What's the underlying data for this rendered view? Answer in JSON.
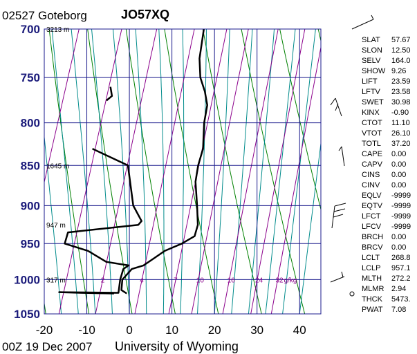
{
  "header": {
    "station": "02527  Goteborg",
    "id": "JO57XQ",
    "time": "00Z 19 Dec 2007",
    "source": "University of Wyoming"
  },
  "chart_data": {
    "type": "skew-t",
    "y_axis": {
      "scale": "log-pressure",
      "range": [
        1050,
        700
      ],
      "tick_labels": [
        "700",
        "750",
        "800",
        "850",
        "900",
        "950",
        "1000",
        "1050"
      ]
    },
    "x_axis": {
      "range": [
        -20,
        45
      ],
      "tick_labels": [
        "-20",
        "-10",
        "0",
        "10",
        "20",
        "30",
        "40"
      ]
    },
    "height_labels": [
      {
        "p": 700,
        "text": "3213 m"
      },
      {
        "p": 850,
        "text": "1645 m"
      },
      {
        "p": 925,
        "text": "947 m"
      },
      {
        "p": 1000,
        "text": "317 m"
      }
    ],
    "mixing_ratio_labels": [
      {
        "value": 2,
        "text": "2"
      },
      {
        "value": 4,
        "text": "4"
      },
      {
        "value": 7,
        "text": "7"
      },
      {
        "value": 10,
        "text": "10"
      },
      {
        "value": 16,
        "text": "16"
      },
      {
        "value": 24,
        "text": "24"
      },
      {
        "value": 32,
        "text": "32"
      }
    ],
    "mixing_ratio_unit": "g/kg",
    "temperature": [
      {
        "p": 1020,
        "t": -2.0
      },
      {
        "p": 1015,
        "t": -3.5
      },
      {
        "p": 1000,
        "t": -4.0
      },
      {
        "p": 985,
        "t": -2.5
      },
      {
        "p": 980,
        "t": 0.0
      },
      {
        "p": 970,
        "t": 2.0
      },
      {
        "p": 960,
        "t": 4.0
      },
      {
        "p": 950,
        "t": 7.5
      },
      {
        "p": 940,
        "t": 10.0
      },
      {
        "p": 925,
        "t": 10.0
      },
      {
        "p": 900,
        "t": 8.5
      },
      {
        "p": 870,
        "t": 6.5
      },
      {
        "p": 850,
        "t": 6.0
      },
      {
        "p": 830,
        "t": 6.0
      },
      {
        "p": 800,
        "t": 4.5
      },
      {
        "p": 780,
        "t": 4.0
      },
      {
        "p": 765,
        "t": 2.5
      },
      {
        "p": 750,
        "t": 0.5
      },
      {
        "p": 730,
        "t": -1.0
      },
      {
        "p": 700,
        "t": -2.0
      }
    ],
    "dewpoint": [
      {
        "p": 1020,
        "t": -5.0
      },
      {
        "p": 1019,
        "t": -13.0
      },
      {
        "p": 1018,
        "t": -18.0
      },
      {
        "p": 1019,
        "t": -4.0
      },
      {
        "p": 1000,
        "t": -4.5
      },
      {
        "p": 985,
        "t": -4.5
      },
      {
        "p": 980,
        "t": -3.5
      },
      {
        "p": 975,
        "t": -9.0
      },
      {
        "p": 960,
        "t": -14.0
      },
      {
        "p": 950,
        "t": -20.0
      },
      {
        "p": 935,
        "t": -20.0
      },
      {
        "p": 925,
        "t": -4.0
      },
      {
        "p": 920,
        "t": -3.5
      },
      {
        "p": 900,
        "t": -6.5
      },
      {
        "p": 850,
        "t": -10.5
      },
      {
        "p": 830,
        "t": -20.0
      }
    ],
    "dewpoint_top": [
      {
        "p": 775,
        "t": -20.0
      },
      {
        "p": 770,
        "t": -19.0
      },
      {
        "p": 760,
        "t": -20.0
      }
    ]
  },
  "indices": [
    {
      "name": "SLAT",
      "value": "57.67"
    },
    {
      "name": "SLON",
      "value": "12.50"
    },
    {
      "name": "SELV",
      "value": "164.0"
    },
    {
      "name": "SHOW",
      "value": "9.26"
    },
    {
      "name": "LIFT",
      "value": "23.59"
    },
    {
      "name": "LFTV",
      "value": "23.58"
    },
    {
      "name": "SWET",
      "value": "30.98"
    },
    {
      "name": "KINX",
      "value": "-0.90"
    },
    {
      "name": "CTOT",
      "value": "11.10"
    },
    {
      "name": "VTOT",
      "value": "26.10"
    },
    {
      "name": "TOTL",
      "value": "37.20"
    },
    {
      "name": "CAPE",
      "value": "0.00"
    },
    {
      "name": "CAPV",
      "value": "0.00"
    },
    {
      "name": "CINS",
      "value": "0.00"
    },
    {
      "name": "CINV",
      "value": "0.00"
    },
    {
      "name": "EQLV",
      "value": "-9999"
    },
    {
      "name": "EQTV",
      "value": "-9999"
    },
    {
      "name": "LFCT",
      "value": "-9999"
    },
    {
      "name": "LFCV",
      "value": "-9999"
    },
    {
      "name": "BRCH",
      "value": "0.00"
    },
    {
      "name": "BRCV",
      "value": "0.00"
    },
    {
      "name": "LCLT",
      "value": "268.8"
    },
    {
      "name": "LCLP",
      "value": "957.1"
    },
    {
      "name": "MLTH",
      "value": "272.2"
    },
    {
      "name": "MLMR",
      "value": "2.94"
    },
    {
      "name": "THCK",
      "value": "5473."
    },
    {
      "name": "PWAT",
      "value": "7.08"
    }
  ],
  "colors": {
    "grid": "#1a1a8c",
    "isotherm": "#1a1a8c",
    "dry_adiabat": "#008000",
    "moist_adiabat": "#008b8b",
    "mixing_ratio": "#8b008b",
    "profile": "#000000",
    "axis_label": "#1a1a7a"
  }
}
